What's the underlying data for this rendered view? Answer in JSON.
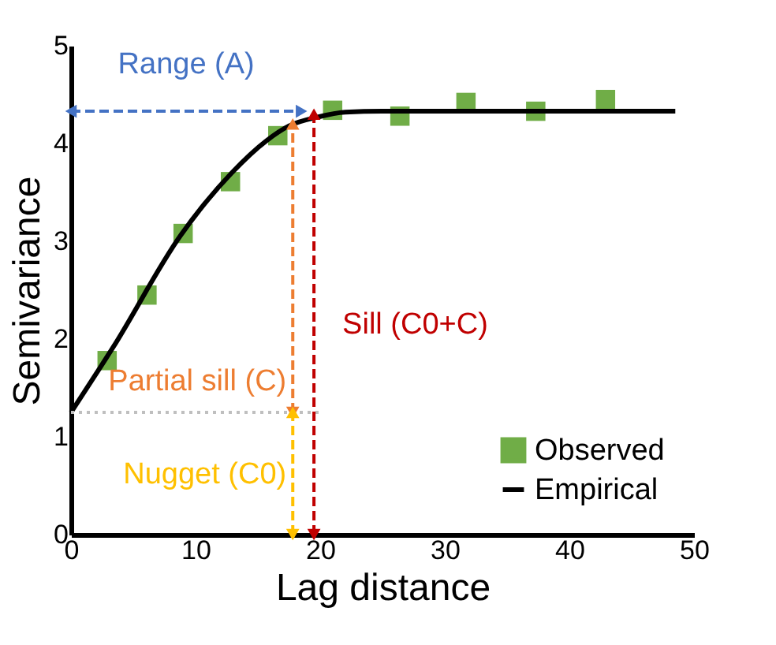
{
  "chart_data": {
    "type": "scatter",
    "xlabel": "Lag distance",
    "ylabel": "Semivariance",
    "xlim": [
      0,
      50
    ],
    "ylim": [
      0,
      5
    ],
    "xticks": [
      0,
      10,
      20,
      30,
      40,
      50
    ],
    "yticks": [
      0,
      1,
      2,
      3,
      4,
      5
    ],
    "grid": false,
    "legend": "bottom right",
    "series": [
      {
        "name": "Observed",
        "marker": "square",
        "color": "#70ad47",
        "x": [
          2.9,
          6.1,
          9.0,
          12.8,
          16.6,
          21.0,
          26.4,
          31.7,
          37.3,
          42.9
        ],
        "values": [
          1.78,
          2.45,
          3.08,
          3.61,
          4.08,
          4.34,
          4.28,
          4.42,
          4.33,
          4.45
        ]
      },
      {
        "name": "Empirical",
        "type": "line",
        "marker": "none",
        "line_style": "solid",
        "color": "#000000",
        "x": [
          0,
          3.4,
          8.8,
          12.9,
          15.7,
          17.5,
          19.8,
          22,
          25,
          48.5
        ],
        "values": [
          1.25,
          1.92,
          3.06,
          3.7,
          4.03,
          4.18,
          4.27,
          4.32,
          4.33,
          4.33
        ]
      },
      {
        "type": "line",
        "marker": "none",
        "line_style": "dotted",
        "color": "#bfbfbf",
        "x": [
          0,
          20
        ],
        "values": [
          1.25,
          1.25
        ]
      },
      {
        "name": "Range (A)",
        "type": "line",
        "marker": "triangle",
        "line_style": "dashed",
        "color": "#4472c4",
        "x": [
          0,
          18.5
        ],
        "values": [
          4.33,
          4.33
        ]
      },
      {
        "name": "Partial sill (C)",
        "type": "line",
        "marker": "triangle",
        "line_style": "dashed",
        "color": "#ed7d31",
        "x": [
          17.8,
          17.8
        ],
        "values": [
          1.25,
          4.2
        ]
      },
      {
        "name": "Nugget (C0)",
        "type": "line",
        "marker": "triangle",
        "line_style": "dashed",
        "color": "#ffc000",
        "x": [
          17.8,
          17.8
        ],
        "values": [
          0,
          1.25
        ]
      },
      {
        "name": "Sill (C0+C)",
        "type": "line",
        "marker": "triangle",
        "line_style": "dashed",
        "color": "#c00000",
        "x": [
          19.5,
          19.5
        ],
        "values": [
          0,
          4.3
        ]
      }
    ]
  }
}
